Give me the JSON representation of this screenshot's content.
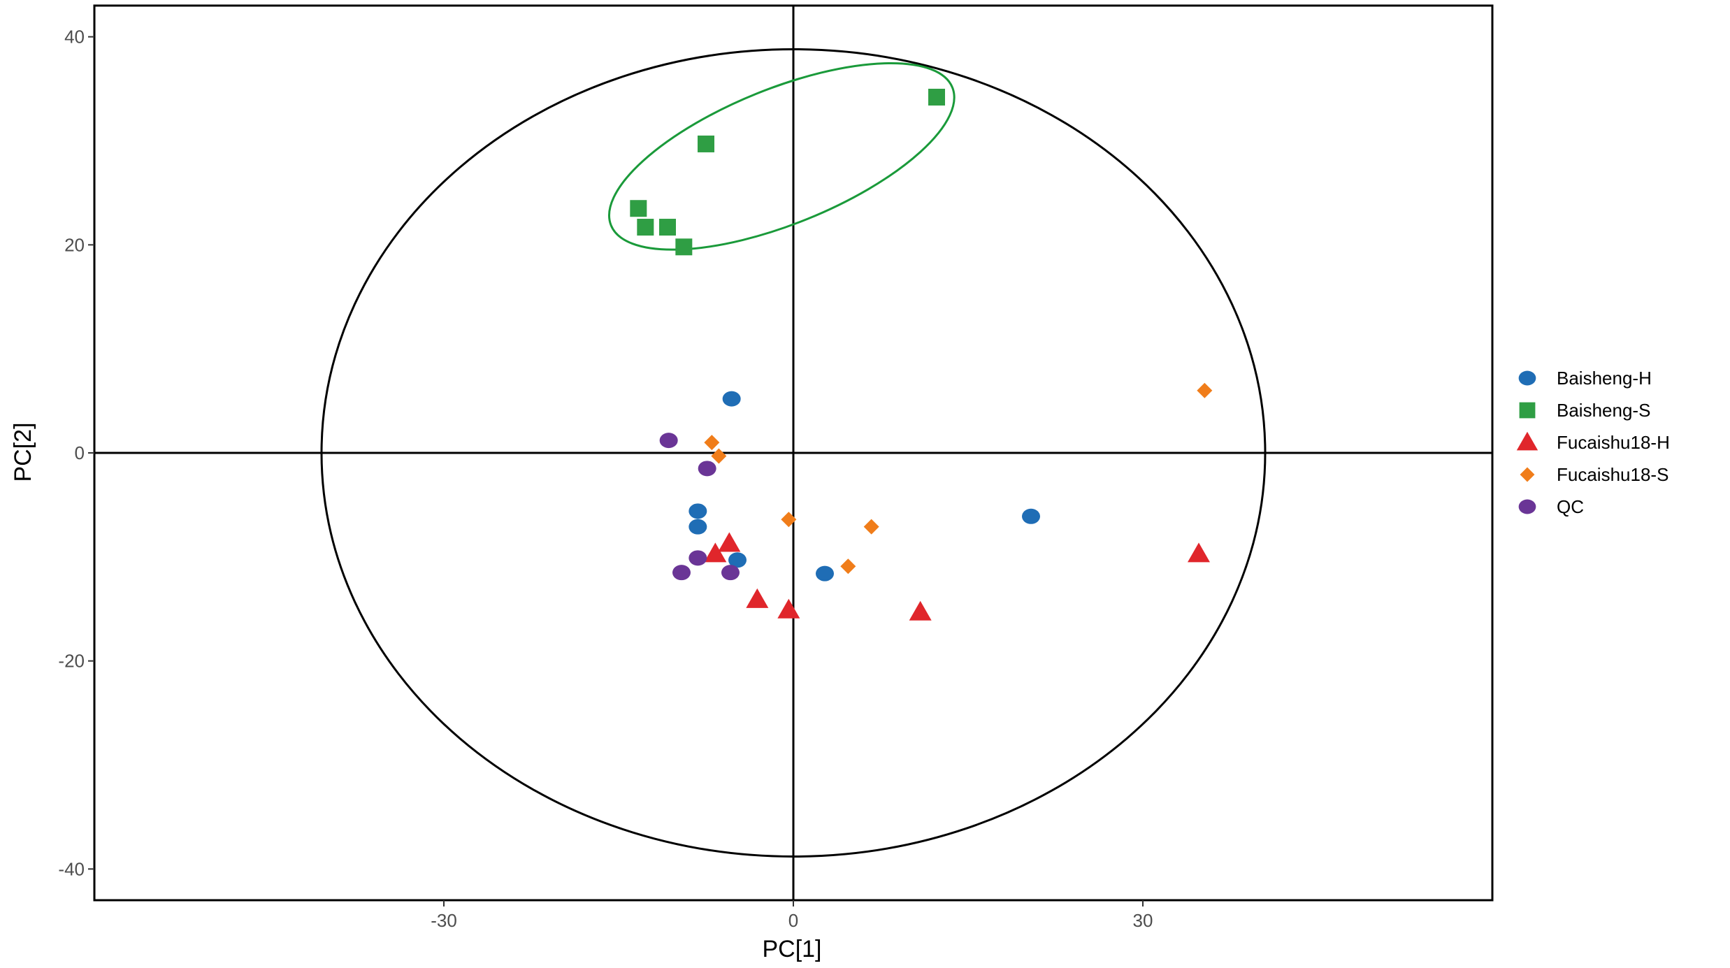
{
  "chart_data": {
    "type": "scatter",
    "title": "",
    "xlabel": "PC[1]",
    "ylabel": "PC[2]",
    "xlim": [
      -60,
      60
    ],
    "ylim": [
      -43,
      43
    ],
    "xticks": [
      -30,
      0,
      30
    ],
    "yticks": [
      -40,
      -20,
      0,
      20,
      40
    ],
    "grid": false,
    "legend_position": "right",
    "hotelling_ellipse": {
      "center": [
        0,
        0
      ],
      "radius_x": 40.5,
      "radius_y": 38.8,
      "color": "#000000"
    },
    "group_ellipse": {
      "series": "Baisheng-S",
      "center": [
        -1.0,
        28.5
      ],
      "radius_x": 15.8,
      "radius_y": 6.5,
      "rotation_deg": -22,
      "color": "#1a9a3a"
    },
    "series": [
      {
        "name": "Baisheng-H",
        "marker": "circle",
        "color": "#1f6db5",
        "points": [
          [
            -5.3,
            5.2
          ],
          [
            -8.2,
            -5.6
          ],
          [
            -8.2,
            -7.1
          ],
          [
            -4.8,
            -10.3
          ],
          [
            2.7,
            -11.6
          ],
          [
            20.4,
            -6.1
          ]
        ]
      },
      {
        "name": "Baisheng-S",
        "marker": "square",
        "color": "#2f9e44",
        "points": [
          [
            -13.3,
            23.5
          ],
          [
            -12.7,
            21.7
          ],
          [
            -10.8,
            21.7
          ],
          [
            -9.4,
            19.8
          ],
          [
            -7.5,
            29.7
          ],
          [
            12.3,
            34.2
          ]
        ]
      },
      {
        "name": "Fucaishu18-H",
        "marker": "triangle",
        "color": "#e0262b",
        "points": [
          [
            -5.5,
            -8.7
          ],
          [
            -6.7,
            -9.7
          ],
          [
            -3.1,
            -14.1
          ],
          [
            -0.4,
            -15.1
          ],
          [
            10.9,
            -15.3
          ],
          [
            34.8,
            -9.7
          ]
        ]
      },
      {
        "name": "Fucaishu18-S",
        "marker": "diamond",
        "color": "#f07d1a",
        "points": [
          [
            -7.0,
            1.0
          ],
          [
            -6.4,
            -0.3
          ],
          [
            -0.4,
            -6.4
          ],
          [
            6.7,
            -7.1
          ],
          [
            4.7,
            -10.9
          ],
          [
            35.3,
            6.0
          ]
        ]
      },
      {
        "name": "QC",
        "marker": "circle",
        "color": "#6a3596",
        "points": [
          [
            -10.7,
            1.2
          ],
          [
            -7.4,
            -1.5
          ],
          [
            -8.2,
            -10.1
          ],
          [
            -9.6,
            -11.5
          ],
          [
            -5.4,
            -11.5
          ]
        ]
      }
    ]
  }
}
